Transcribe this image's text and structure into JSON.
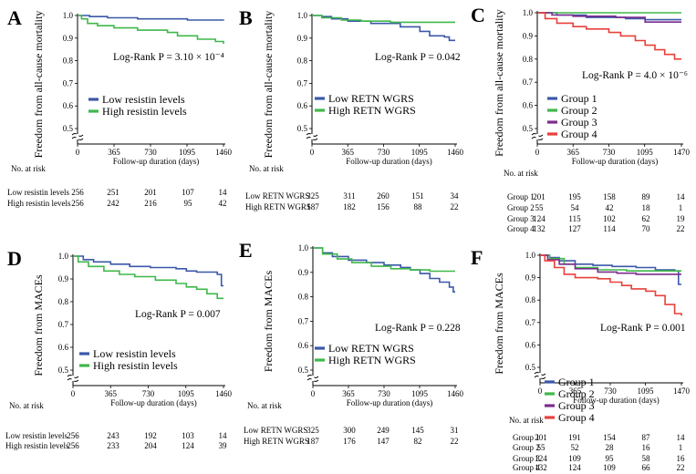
{
  "chart_data": [
    {
      "type": "line",
      "panel_label": "A",
      "ylabel": "Freedom from all-cause mortality",
      "xlabel": "Follow-up duration (days)",
      "xticks": [
        "0",
        "365",
        "730",
        "1095",
        "1460"
      ],
      "yticks": [
        "1.0",
        "0.9",
        "0.8",
        "0.7",
        "0.6",
        "0.5"
      ],
      "ylim": [
        0.5,
        1.0
      ],
      "xlim": [
        0,
        1460
      ],
      "pvalue": "Log-Rank P = 3.10 × 10⁻⁴",
      "series": [
        {
          "name": "Low resistin levels",
          "color": "#3b58a8",
          "points": [
            [
              0,
              1.0
            ],
            [
              120,
              0.995
            ],
            [
              300,
              0.99
            ],
            [
              600,
              0.985
            ],
            [
              1100,
              0.98
            ],
            [
              1460,
              0.978
            ]
          ]
        },
        {
          "name": "High resistin levels",
          "color": "#3fb84a",
          "points": [
            [
              0,
              1.0
            ],
            [
              40,
              0.985
            ],
            [
              100,
              0.965
            ],
            [
              200,
              0.955
            ],
            [
              365,
              0.945
            ],
            [
              600,
              0.935
            ],
            [
              900,
              0.925
            ],
            [
              1000,
              0.91
            ],
            [
              1200,
              0.895
            ],
            [
              1380,
              0.885
            ],
            [
              1460,
              0.875
            ]
          ]
        }
      ],
      "risk_table": {
        "header": "No. at risk",
        "rows": [
          {
            "label": "Low resistin levels",
            "values": [
              "256",
              "251",
              "201",
              "107",
              "14"
            ]
          },
          {
            "label": "High resistin levels",
            "values": [
              "256",
              "242",
              "216",
              "95",
              "42"
            ]
          }
        ]
      }
    },
    {
      "type": "line",
      "panel_label": "B",
      "ylabel": "Freedom from all-cause mortality",
      "xlabel": "Follow-up duration (days)",
      "xticks": [
        "0",
        "365",
        "730",
        "1095",
        "1460"
      ],
      "yticks": [
        "1.0",
        "0.9",
        "0.8",
        "0.7",
        "0.6",
        "0.5"
      ],
      "ylim": [
        0.5,
        1.0
      ],
      "xlim": [
        0,
        1460
      ],
      "pvalue": "Log-Rank P = 0.042",
      "series": [
        {
          "name": "Low RETN WGRS",
          "color": "#3b58a8",
          "points": [
            [
              0,
              1.0
            ],
            [
              100,
              0.995
            ],
            [
              200,
              0.985
            ],
            [
              365,
              0.975
            ],
            [
              600,
              0.965
            ],
            [
              900,
              0.95
            ],
            [
              1100,
              0.93
            ],
            [
              1200,
              0.91
            ],
            [
              1350,
              0.905
            ],
            [
              1400,
              0.89
            ],
            [
              1460,
              0.89
            ]
          ]
        },
        {
          "name": "High RETN WGRS",
          "color": "#3fb84a",
          "points": [
            [
              0,
              1.0
            ],
            [
              100,
              0.99
            ],
            [
              300,
              0.98
            ],
            [
              500,
              0.975
            ],
            [
              800,
              0.97
            ],
            [
              1460,
              0.97
            ]
          ]
        }
      ],
      "risk_table": {
        "header": "No. at risk",
        "rows": [
          {
            "label": "Low RETN WGRS",
            "values": [
              "325",
              "311",
              "260",
              "151",
              "34"
            ]
          },
          {
            "label": "High RETN WGRS",
            "values": [
              "187",
              "182",
              "156",
              "88",
              "22"
            ]
          }
        ]
      }
    },
    {
      "type": "line",
      "panel_label": "C",
      "ylabel": "Freedom from all-cause mortality",
      "xlabel": "Follow-up duration (days)",
      "xticks": [
        "0",
        "365",
        "730",
        "1095",
        "1470"
      ],
      "yticks": [
        "1.0",
        "0.9",
        "0.8",
        "0.7",
        "0.6",
        "0.5"
      ],
      "ylim": [
        0.5,
        1.0
      ],
      "xlim": [
        0,
        1470
      ],
      "pvalue": "Log-Rank P = 4.0 × 10⁻⁶",
      "series": [
        {
          "name": "Group 1",
          "color": "#3b58a8",
          "points": [
            [
              0,
              1.0
            ],
            [
              200,
              0.99
            ],
            [
              500,
              0.98
            ],
            [
              900,
              0.975
            ],
            [
              1100,
              0.97
            ],
            [
              1470,
              0.97
            ]
          ]
        },
        {
          "name": "Group 2",
          "color": "#3fb84a",
          "points": [
            [
              0,
              1.0
            ],
            [
              1470,
              1.0
            ]
          ]
        },
        {
          "name": "Group 3",
          "color": "#7b2c8e",
          "points": [
            [
              0,
              1.0
            ],
            [
              150,
              0.99
            ],
            [
              365,
              0.985
            ],
            [
              800,
              0.98
            ],
            [
              1100,
              0.96
            ],
            [
              1470,
              0.96
            ]
          ]
        },
        {
          "name": "Group 4",
          "color": "#e8403a",
          "points": [
            [
              0,
              1.0
            ],
            [
              80,
              0.975
            ],
            [
              200,
              0.955
            ],
            [
              365,
              0.94
            ],
            [
              500,
              0.93
            ],
            [
              730,
              0.915
            ],
            [
              850,
              0.9
            ],
            [
              1000,
              0.88
            ],
            [
              1100,
              0.86
            ],
            [
              1200,
              0.84
            ],
            [
              1300,
              0.82
            ],
            [
              1400,
              0.8
            ],
            [
              1470,
              0.8
            ]
          ]
        }
      ],
      "risk_table": {
        "header": "No. at risk",
        "rows": [
          {
            "label": "Group 1",
            "values": [
              "201",
              "195",
              "158",
              "89",
              "14"
            ]
          },
          {
            "label": "Group 2",
            "values": [
              "55",
              "54",
              "42",
              "18",
              "1"
            ]
          },
          {
            "label": "Group 3",
            "values": [
              "124",
              "115",
              "102",
              "62",
              "19"
            ]
          },
          {
            "label": "Group 4",
            "values": [
              "132",
              "127",
              "114",
              "70",
              "22"
            ]
          }
        ]
      }
    },
    {
      "type": "line",
      "panel_label": "D",
      "ylabel": "Freedom from MACEs",
      "xlabel": "Follow-up duration (days)",
      "xticks": [
        "0",
        "365",
        "730",
        "1095",
        "1460"
      ],
      "yticks": [
        "1.0",
        "0.9",
        "0.8",
        "0.7",
        "0.6",
        "0.5"
      ],
      "ylim": [
        0.5,
        1.0
      ],
      "xlim": [
        0,
        1460
      ],
      "pvalue": "Log-Rank P = 0.007",
      "series": [
        {
          "name": "Low resistin levels",
          "color": "#3b58a8",
          "points": [
            [
              0,
              1.0
            ],
            [
              100,
              0.985
            ],
            [
              200,
              0.975
            ],
            [
              365,
              0.965
            ],
            [
              550,
              0.955
            ],
            [
              750,
              0.95
            ],
            [
              1000,
              0.945
            ],
            [
              1100,
              0.935
            ],
            [
              1200,
              0.93
            ],
            [
              1400,
              0.92
            ],
            [
              1440,
              0.87
            ],
            [
              1460,
              0.87
            ]
          ]
        },
        {
          "name": "High resistin levels",
          "color": "#3fb84a",
          "points": [
            [
              0,
              1.0
            ],
            [
              50,
              0.975
            ],
            [
              150,
              0.955
            ],
            [
              300,
              0.935
            ],
            [
              450,
              0.92
            ],
            [
              600,
              0.91
            ],
            [
              800,
              0.895
            ],
            [
              1000,
              0.88
            ],
            [
              1100,
              0.865
            ],
            [
              1200,
              0.855
            ],
            [
              1300,
              0.835
            ],
            [
              1400,
              0.815
            ],
            [
              1460,
              0.815
            ]
          ]
        }
      ],
      "risk_table": {
        "header": "No. at risk",
        "rows": [
          {
            "label": "Low resistin levels",
            "values": [
              "256",
              "243",
              "192",
              "103",
              "14"
            ]
          },
          {
            "label": "High resistin levels",
            "values": [
              "256",
              "233",
              "204",
              "124",
              "39"
            ]
          }
        ]
      }
    },
    {
      "type": "line",
      "panel_label": "E",
      "ylabel": "Freedom from MACEs",
      "xlabel": "Follow-up duration (days)",
      "xticks": [
        "0",
        "365",
        "730",
        "1095",
        "1460"
      ],
      "yticks": [
        "1.0",
        "0.9",
        "0.8",
        "0.7",
        "0.6",
        "0.5"
      ],
      "ylim": [
        0.5,
        1.0
      ],
      "xlim": [
        0,
        1460
      ],
      "pvalue": "Log-Rank P = 0.228",
      "series": [
        {
          "name": "Low RETN WGRS",
          "color": "#3b58a8",
          "points": [
            [
              0,
              1.0
            ],
            [
              100,
              0.98
            ],
            [
              200,
              0.965
            ],
            [
              365,
              0.95
            ],
            [
              550,
              0.94
            ],
            [
              730,
              0.93
            ],
            [
              900,
              0.92
            ],
            [
              1000,
              0.91
            ],
            [
              1100,
              0.895
            ],
            [
              1200,
              0.875
            ],
            [
              1300,
              0.86
            ],
            [
              1400,
              0.84
            ],
            [
              1440,
              0.82
            ],
            [
              1460,
              0.82
            ]
          ]
        },
        {
          "name": "High RETN WGRS",
          "color": "#3fb84a",
          "points": [
            [
              0,
              1.0
            ],
            [
              100,
              0.975
            ],
            [
              250,
              0.955
            ],
            [
              400,
              0.94
            ],
            [
              600,
              0.925
            ],
            [
              800,
              0.915
            ],
            [
              1000,
              0.91
            ],
            [
              1200,
              0.905
            ],
            [
              1460,
              0.905
            ]
          ]
        }
      ],
      "risk_table": {
        "header": "No. at risk",
        "rows": [
          {
            "label": "Low RETN WGRS",
            "values": [
              "325",
              "300",
              "249",
              "145",
              "31"
            ]
          },
          {
            "label": "High RETN WGRS",
            "values": [
              "187",
              "176",
              "147",
              "82",
              "22"
            ]
          }
        ]
      }
    },
    {
      "type": "line",
      "panel_label": "F",
      "ylabel": "Freedom from MACEs",
      "xlabel": "Follow-up duration (days)",
      "xticks": [
        "0",
        "365",
        "730",
        "1095",
        "1470"
      ],
      "yticks": [
        "1.0",
        "0.9",
        "0.8",
        "0.7",
        "0.6",
        "0.5"
      ],
      "ylim": [
        0.5,
        1.0
      ],
      "xlim": [
        0,
        1470
      ],
      "pvalue": "Log-Rank P = 0.001",
      "series": [
        {
          "name": "Group 1",
          "color": "#3b58a8",
          "points": [
            [
              0,
              1.0
            ],
            [
              100,
              0.99
            ],
            [
              200,
              0.975
            ],
            [
              365,
              0.96
            ],
            [
              550,
              0.955
            ],
            [
              750,
              0.95
            ],
            [
              1000,
              0.945
            ],
            [
              1200,
              0.935
            ],
            [
              1400,
              0.93
            ],
            [
              1440,
              0.87
            ],
            [
              1470,
              0.87
            ]
          ]
        },
        {
          "name": "Group 2",
          "color": "#3fb84a",
          "points": [
            [
              0,
              1.0
            ],
            [
              100,
              0.985
            ],
            [
              250,
              0.96
            ],
            [
              365,
              0.945
            ],
            [
              600,
              0.935
            ],
            [
              900,
              0.93
            ],
            [
              1470,
              0.93
            ]
          ]
        },
        {
          "name": "Group 3",
          "color": "#7b2c8e",
          "points": [
            [
              0,
              1.0
            ],
            [
              80,
              0.98
            ],
            [
              200,
              0.96
            ],
            [
              365,
              0.94
            ],
            [
              600,
              0.925
            ],
            [
              800,
              0.92
            ],
            [
              1000,
              0.915
            ],
            [
              1470,
              0.915
            ]
          ]
        },
        {
          "name": "Group 4",
          "color": "#e8403a",
          "points": [
            [
              0,
              1.0
            ],
            [
              50,
              0.975
            ],
            [
              150,
              0.945
            ],
            [
              250,
              0.915
            ],
            [
              365,
              0.9
            ],
            [
              600,
              0.895
            ],
            [
              730,
              0.88
            ],
            [
              850,
              0.865
            ],
            [
              950,
              0.85
            ],
            [
              1100,
              0.84
            ],
            [
              1200,
              0.82
            ],
            [
              1300,
              0.78
            ],
            [
              1400,
              0.74
            ],
            [
              1470,
              0.73
            ]
          ]
        }
      ],
      "risk_table": {
        "header": "No. at risk",
        "rows": [
          {
            "label": "Group 1",
            "values": [
              "201",
              "191",
              "154",
              "87",
              "14"
            ]
          },
          {
            "label": "Group 2",
            "values": [
              "55",
              "52",
              "28",
              "16",
              "1"
            ]
          },
          {
            "label": "Group 3",
            "values": [
              "124",
              "109",
              "95",
              "58",
              "16"
            ]
          },
          {
            "label": "Group 4",
            "values": [
              "132",
              "124",
              "109",
              "66",
              "22"
            ]
          }
        ]
      }
    }
  ]
}
